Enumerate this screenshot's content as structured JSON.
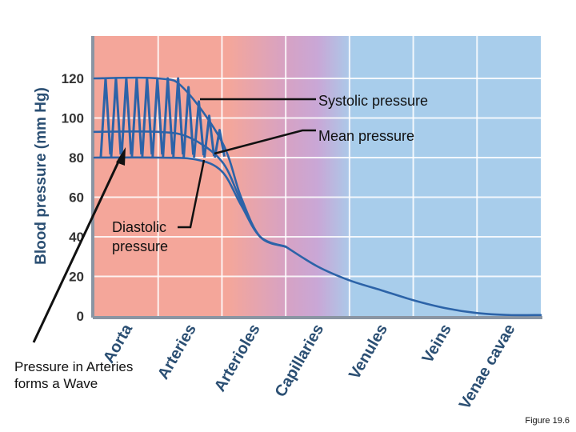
{
  "chart_data": {
    "type": "line",
    "ylabel": "Blood pressure (mm Hg)",
    "ylim": [
      0,
      120
    ],
    "yticks": [
      "0",
      "20",
      "40",
      "60",
      "80",
      "100",
      "120"
    ],
    "categories": [
      "Aorta",
      "Arteries",
      "Arterioles",
      "Capillaries",
      "Venules",
      "Veins",
      "Venae cavae"
    ],
    "series": [
      {
        "name": "Systolic pressure",
        "x": [
          0,
          1,
          1.4,
          2,
          2.3,
          2.6,
          3.0
        ],
        "values": [
          120,
          120,
          115,
          88,
          60,
          40,
          35
        ]
      },
      {
        "name": "Mean pressure",
        "x": [
          0,
          1,
          1.5,
          2,
          2.3,
          2.6,
          3.0
        ],
        "values": [
          93,
          93,
          90,
          78,
          58,
          40,
          35
        ]
      },
      {
        "name": "Diastolic pressure",
        "x": [
          0,
          1,
          1.6,
          2,
          2.3,
          2.6,
          3.0
        ],
        "values": [
          80,
          80,
          79,
          73,
          56,
          40,
          35
        ]
      },
      {
        "name": "Pressure",
        "x": [
          3.0,
          3.5,
          4.0,
          4.5,
          5.0,
          5.5,
          6.0,
          6.5,
          7.0
        ],
        "values": [
          35,
          25,
          18,
          13,
          8,
          4,
          1.5,
          0.5,
          0.5
        ]
      }
    ],
    "grid": true,
    "region_colors": [
      "#f4a69a",
      "#c9a7d6",
      "#a8cdeb"
    ]
  },
  "annotations": {
    "systolic": "Systolic pressure",
    "mean": "Mean pressure",
    "diastolic_line1": "Diastolic",
    "diastolic_line2": "pressure"
  },
  "note": "Pressure in Arteries forms a Wave",
  "figure_label": "Figure 19.6",
  "colors": {
    "curve": "#2c63a8",
    "axis": "#8a95a3",
    "grid": "#ffffff"
  }
}
